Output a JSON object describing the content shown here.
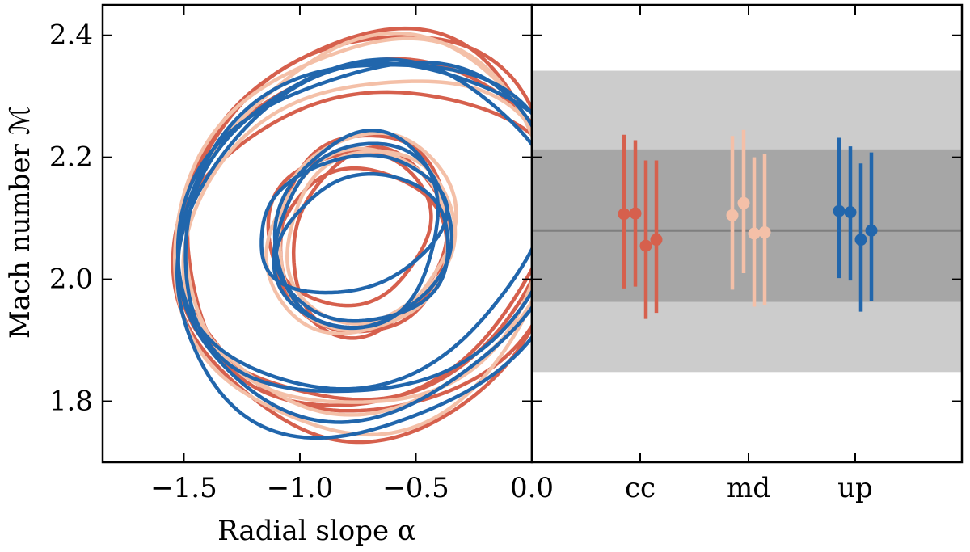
{
  "chart_data": [
    {
      "type": "contour",
      "panel": "left",
      "xlabel": "Radial slope α",
      "ylabel": "Mach number ℳ",
      "xlim": [
        -1.85,
        0.0
      ],
      "ylim": [
        1.7,
        2.45
      ],
      "xticks": [
        -1.5,
        -1.0,
        -0.5,
        0.0
      ],
      "xtick_labels": [
        "−1.5",
        "−1.0",
        "−0.5",
        "0.0"
      ],
      "yticks": [
        1.8,
        2.0,
        2.2,
        2.4
      ],
      "ytick_labels": [
        "1.8",
        "2.0",
        "2.2",
        "2.4"
      ],
      "series": [
        {
          "name": "cc",
          "color": "#d6604d",
          "contours": [
            {
              "level": "inner",
              "cx": -0.79,
              "cy": 2.085,
              "rx": 0.35,
              "ry": 0.125,
              "tilt": 0.03
            },
            {
              "level": "inner",
              "cx": -0.73,
              "cy": 2.075,
              "rx": 0.36,
              "ry": 0.165,
              "tilt": 0.05
            },
            {
              "level": "inner",
              "cx": -0.74,
              "cy": 2.05,
              "rx": 0.37,
              "ry": 0.13,
              "tilt": 0.02
            },
            {
              "level": "inner",
              "cx": -0.7,
              "cy": 2.06,
              "rx": 0.33,
              "ry": 0.15,
              "tilt": 0.05
            },
            {
              "level": "outer",
              "cx": -0.72,
              "cy": 2.1,
              "rx": 0.8,
              "ry": 0.3,
              "tilt": 0.05
            },
            {
              "level": "outer",
              "cx": -0.7,
              "cy": 2.07,
              "rx": 0.82,
              "ry": 0.33,
              "tilt": 0.04
            },
            {
              "level": "outer",
              "cx": -0.68,
              "cy": 2.05,
              "rx": 0.84,
              "ry": 0.26,
              "tilt": 0.03
            },
            {
              "level": "outer",
              "cx": -0.71,
              "cy": 2.08,
              "rx": 0.79,
              "ry": 0.28,
              "tilt": 0.06
            }
          ]
        },
        {
          "name": "md",
          "color": "#f4c0a8",
          "contours": [
            {
              "level": "inner",
              "cx": -0.72,
              "cy": 2.08,
              "rx": 0.38,
              "ry": 0.16,
              "tilt": 0.06
            },
            {
              "level": "inner",
              "cx": -0.7,
              "cy": 2.07,
              "rx": 0.36,
              "ry": 0.14,
              "tilt": 0.05
            },
            {
              "level": "inner",
              "cx": -0.75,
              "cy": 2.06,
              "rx": 0.39,
              "ry": 0.15,
              "tilt": 0.04
            },
            {
              "level": "outer",
              "cx": -0.7,
              "cy": 2.09,
              "rx": 0.78,
              "ry": 0.3,
              "tilt": 0.05
            },
            {
              "level": "outer",
              "cx": -0.72,
              "cy": 2.07,
              "rx": 0.81,
              "ry": 0.32,
              "tilt": 0.04
            },
            {
              "level": "outer",
              "cx": -0.69,
              "cy": 2.06,
              "rx": 0.8,
              "ry": 0.27,
              "tilt": 0.05
            }
          ]
        },
        {
          "name": "up",
          "color": "#2166ac",
          "contours": [
            {
              "level": "inner",
              "cx": -0.78,
              "cy": 2.09,
              "rx": 0.4,
              "ry": 0.11,
              "tilt": 0.06
            },
            {
              "level": "inner",
              "cx": -0.73,
              "cy": 2.07,
              "rx": 0.38,
              "ry": 0.15,
              "tilt": 0.05
            },
            {
              "level": "inner",
              "cx": -0.72,
              "cy": 2.05,
              "rx": 0.37,
              "ry": 0.12,
              "tilt": 0.03
            },
            {
              "level": "inner",
              "cx": -0.75,
              "cy": 2.08,
              "rx": 0.35,
              "ry": 0.16,
              "tilt": 0.06
            },
            {
              "level": "outer",
              "cx": -0.73,
              "cy": 2.09,
              "rx": 0.8,
              "ry": 0.26,
              "tilt": 0.07
            },
            {
              "level": "outer",
              "cx": -0.7,
              "cy": 2.07,
              "rx": 0.83,
              "ry": 0.29,
              "tilt": 0.05
            },
            {
              "level": "outer",
              "cx": -0.68,
              "cy": 2.05,
              "rx": 0.86,
              "ry": 0.3,
              "tilt": 0.06
            },
            {
              "level": "outer",
              "cx": -0.71,
              "cy": 2.08,
              "rx": 0.8,
              "ry": 0.27,
              "tilt": 0.04
            }
          ]
        }
      ]
    },
    {
      "type": "errorbar",
      "panel": "right",
      "categories": [
        "cc",
        "md",
        "up"
      ],
      "ylim": [
        1.7,
        2.45
      ],
      "reference": {
        "line": 2.08,
        "band_1sigma": [
          1.963,
          2.213
        ],
        "band_2sigma": [
          1.848,
          2.342
        ],
        "line_color": "#7f7f7f",
        "band_1sigma_color": "#a6a6a6",
        "band_2sigma_color": "#cccccc"
      },
      "series": [
        {
          "name": "cc",
          "color": "#d6604d",
          "points": [
            {
              "y": 2.107,
              "low": 1.985,
              "high": 2.237
            },
            {
              "y": 2.108,
              "low": 1.988,
              "high": 2.228
            },
            {
              "y": 2.055,
              "low": 1.935,
              "high": 2.195
            },
            {
              "y": 2.065,
              "low": 1.945,
              "high": 2.195
            }
          ]
        },
        {
          "name": "md",
          "color": "#f4c0a8",
          "points": [
            {
              "y": 2.105,
              "low": 1.983,
              "high": 2.235
            },
            {
              "y": 2.125,
              "low": 2.01,
              "high": 2.245
            },
            {
              "y": 2.075,
              "low": 1.955,
              "high": 2.2
            },
            {
              "y": 2.077,
              "low": 1.957,
              "high": 2.205
            }
          ]
        },
        {
          "name": "up",
          "color": "#2166ac",
          "points": [
            {
              "y": 2.112,
              "low": 2.002,
              "high": 2.232
            },
            {
              "y": 2.11,
              "low": 1.998,
              "high": 2.218
            },
            {
              "y": 2.065,
              "low": 1.947,
              "high": 2.19
            },
            {
              "y": 2.08,
              "low": 1.965,
              "high": 2.208
            }
          ]
        }
      ]
    }
  ]
}
